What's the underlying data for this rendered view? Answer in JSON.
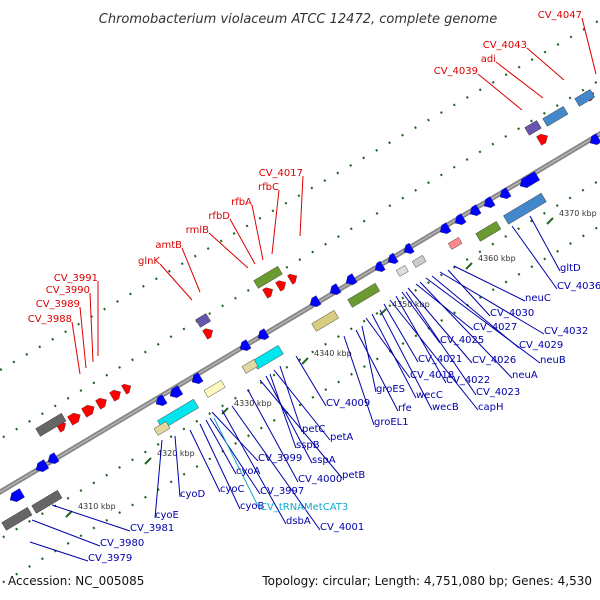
{
  "title": "Chromobacterium violaceum ATCC 12472, complete genome",
  "footer": {
    "accession": "Accession: NC_005085",
    "summary": "Topology: circular; Length: 4,751,080 bp; Genes: 4,530"
  },
  "colors": {
    "forward_gene": "#ff0000",
    "reverse_gene": "#0000ff",
    "forward_label": "#dd0000",
    "reverse_label": "#0000aa",
    "rna_label": "#11aacc",
    "backbone": "#888888",
    "tick": "#226622"
  },
  "scale_ticks": [
    "4310 kbp",
    "4320 kbp",
    "4330 kbp",
    "4340 kbp",
    "4350 kbp",
    "4360 kbp",
    "4370 kbp"
  ],
  "forward_labels": [
    "CV_3988",
    "CV_3989",
    "CV_3990",
    "CV_3991",
    "glnK",
    "amtB",
    "rmlB",
    "rfbD",
    "rfbA",
    "rfbC",
    "CV_4017",
    "CV_4039",
    "adi",
    "CV_4043",
    "CV_4047"
  ],
  "reverse_labels": [
    "CV_3979",
    "CV_3980",
    "CV_3981",
    "cyoE",
    "cyoD",
    "cyoC",
    "cyoB",
    "cyoA",
    "CV_3997",
    "CV_3999",
    "CV_tRNAMetCAT3",
    "dsbA",
    "CV_4001",
    "CV_4000",
    "petB",
    "sspA",
    "sspB",
    "petA",
    "petC",
    "CV_4009",
    "groEL1",
    "rfe",
    "groES",
    "wecB",
    "wecC",
    "CV_4018",
    "capH",
    "CV_4021",
    "CV_4023",
    "CV_4022",
    "neuA",
    "CV_4026",
    "CV_4025",
    "neuB",
    "CV_4027",
    "CV_4029",
    "CV_4030",
    "CV_4032",
    "neuC",
    "CV_4036",
    "gltD"
  ]
}
